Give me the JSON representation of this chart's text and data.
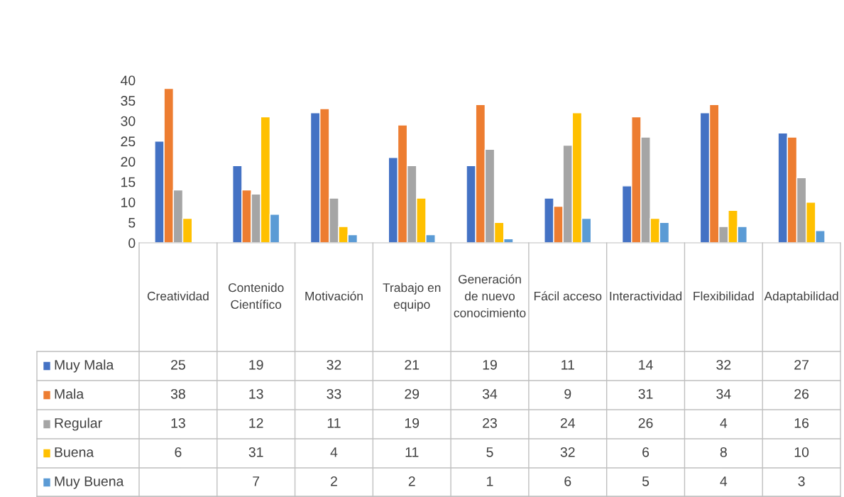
{
  "chart_data": {
    "type": "bar",
    "categories": [
      "Creatividad",
      "Contenido Científico",
      "Motivación",
      "Trabajo en equipo",
      "Generación de nuevo conocimiento",
      "Fácil acceso",
      "Interactividad",
      "Flexibilidad",
      "Adaptabilidad"
    ],
    "series": [
      {
        "name": "Muy Mala",
        "color": "#4472c4",
        "values": [
          25,
          19,
          32,
          21,
          19,
          11,
          14,
          32,
          27
        ]
      },
      {
        "name": "Mala",
        "color": "#ed7d31",
        "values": [
          38,
          13,
          33,
          29,
          34,
          9,
          31,
          34,
          26
        ]
      },
      {
        "name": "Regular",
        "color": "#a5a5a5",
        "values": [
          13,
          12,
          11,
          19,
          23,
          24,
          26,
          4,
          16
        ]
      },
      {
        "name": "Buena",
        "color": "#ffc000",
        "values": [
          6,
          31,
          4,
          11,
          5,
          32,
          6,
          8,
          10
        ]
      },
      {
        "name": "Muy Buena",
        "color": "#5b9bd5",
        "values": [
          null,
          7,
          2,
          2,
          1,
          6,
          5,
          4,
          3
        ]
      }
    ],
    "ylim": [
      0,
      40
    ],
    "yticks": [
      0,
      5,
      10,
      15,
      20,
      25,
      30,
      35,
      40
    ],
    "grid": false,
    "legend": "bottom",
    "data_labels": true
  }
}
